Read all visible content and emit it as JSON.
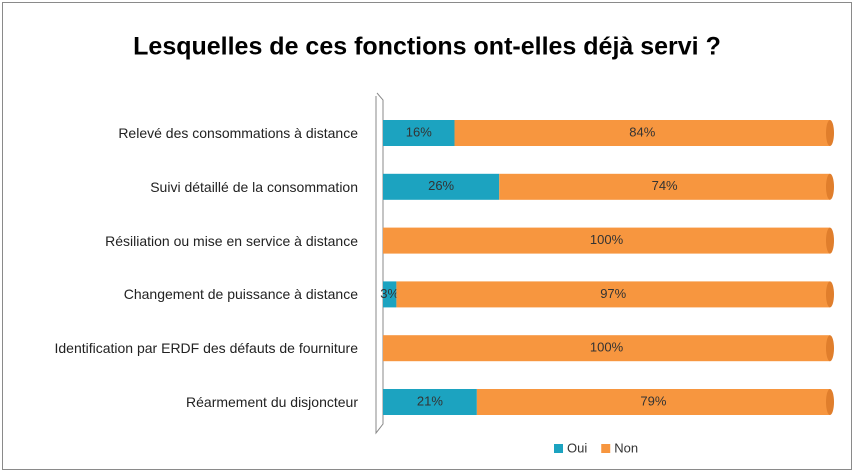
{
  "chart_data": {
    "type": "stacked-bar-horizontal",
    "title": "Lesquelles de ces fonctions ont-elles déjà servi ?",
    "categories": [
      "Relevé des consommations à distance",
      "Suivi détaillé de la consommation",
      "Résiliation ou mise en service à distance",
      "Changement de puissance à distance",
      "Identification par ERDF des défauts de fourniture",
      "Réarmement du disjoncteur"
    ],
    "series": [
      {
        "name": "Oui",
        "color": "#1ca3c0",
        "values": [
          16,
          26,
          0,
          3,
          0,
          21
        ],
        "value_labels": [
          "16%",
          "26%",
          null,
          "3%",
          null,
          "21%"
        ]
      },
      {
        "name": "Non",
        "color": "#f7963f",
        "values": [
          84,
          74,
          100,
          97,
          100,
          79
        ],
        "value_labels": [
          "84%",
          "74%",
          "100%",
          "97%",
          "100%",
          "79%"
        ]
      }
    ],
    "xlim": [
      0,
      100
    ],
    "legend": "bottom"
  }
}
